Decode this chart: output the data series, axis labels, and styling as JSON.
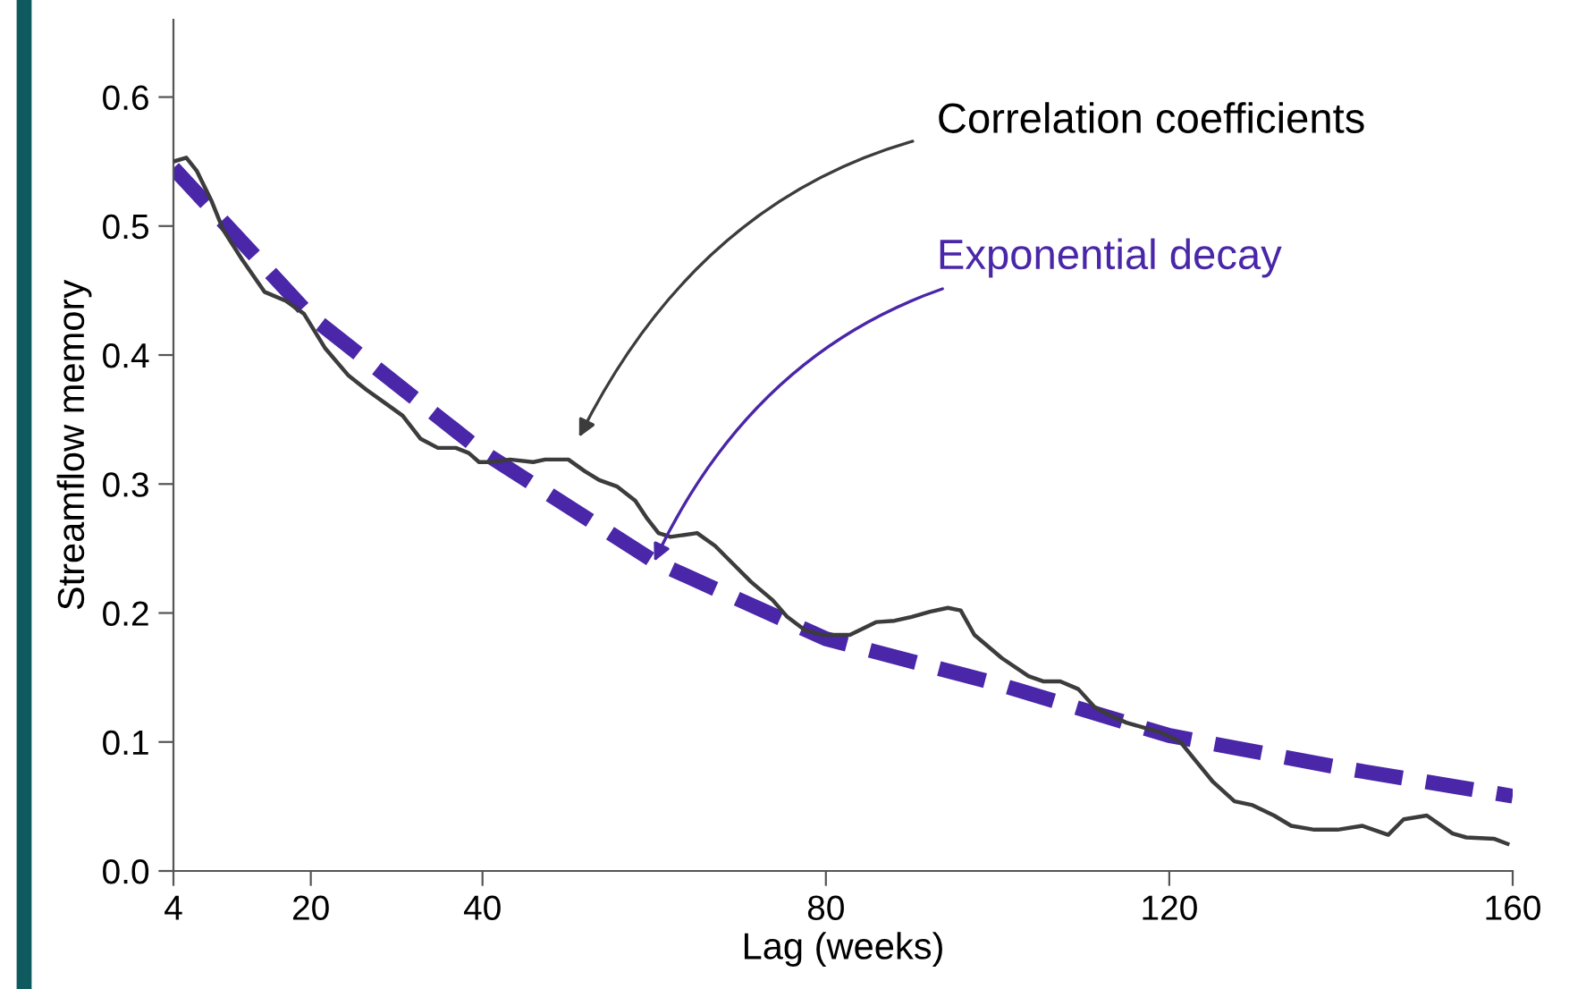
{
  "chart_data": {
    "type": "line",
    "xlabel": "Lag (weeks)",
    "ylabel": "Streamflow memory",
    "xlim": [
      4,
      160
    ],
    "xticks": [
      4,
      20,
      40,
      80,
      120,
      160
    ],
    "ylim": [
      0,
      0.66
    ],
    "yticks": [
      {
        "value": 0,
        "label": "0.0"
      },
      0.1,
      0.2,
      0.3,
      0.4,
      0.5,
      0.6
    ],
    "grid": false,
    "legend": false,
    "marker": "none",
    "series": [
      {
        "name": "Correlation coefficients",
        "color": "#3c3c3c",
        "line_style": "solid",
        "x": [
          4,
          5.5,
          6.7,
          8.4,
          9.8,
          12,
          14.6,
          17.1,
          19.2,
          21.7,
          24.4,
          26.5,
          28.6,
          30.7,
          32.8,
          34.8,
          36.9,
          38.4,
          39.6,
          41.1,
          43.2,
          45.9,
          47.3,
          50,
          51.9,
          53.6,
          55.7,
          57.8,
          59.2,
          60.5,
          61.9,
          65,
          67.1,
          69.2,
          71.3,
          73.8,
          75.5,
          77.5,
          79.6,
          82.8,
          85.9,
          88,
          90,
          92.1,
          94.2,
          95.7,
          97.3,
          100.5,
          103.6,
          105.3,
          107.3,
          109.4,
          111.3,
          113,
          115,
          117.1,
          119.2,
          121.3,
          123,
          125.1,
          127.6,
          129.7,
          132.2,
          134.2,
          136.9,
          139.6,
          142.5,
          145.5,
          147.3,
          150,
          153,
          154.6,
          157.8,
          159.4
        ],
        "values": [
          0.55,
          0.553,
          0.543,
          0.52,
          0.497,
          0.474,
          0.449,
          0.442,
          0.432,
          0.405,
          0.384,
          0.373,
          0.363,
          0.353,
          0.335,
          0.328,
          0.328,
          0.324,
          0.317,
          0.317,
          0.319,
          0.317,
          0.319,
          0.319,
          0.31,
          0.303,
          0.298,
          0.287,
          0.273,
          0.262,
          0.259,
          0.262,
          0.252,
          0.238,
          0.224,
          0.21,
          0.197,
          0.187,
          0.183,
          0.183,
          0.193,
          0.194,
          0.197,
          0.201,
          0.204,
          0.202,
          0.183,
          0.165,
          0.151,
          0.147,
          0.147,
          0.141,
          0.127,
          0.121,
          0.115,
          0.111,
          0.107,
          0.1,
          0.086,
          0.069,
          0.054,
          0.051,
          0.043,
          0.035,
          0.032,
          0.032,
          0.035,
          0.028,
          0.04,
          0.043,
          0.029,
          0.026,
          0.025,
          0.021
        ]
      },
      {
        "name": "Exponential decay",
        "color": "#4a26a8",
        "line_style": "dashed",
        "x": [
          4,
          20,
          40,
          60,
          80,
          100,
          120,
          140,
          160
        ],
        "values": [
          0.545,
          0.43,
          0.325,
          0.24,
          0.18,
          0.145,
          0.105,
          0.08,
          0.058
        ]
      }
    ]
  }
}
